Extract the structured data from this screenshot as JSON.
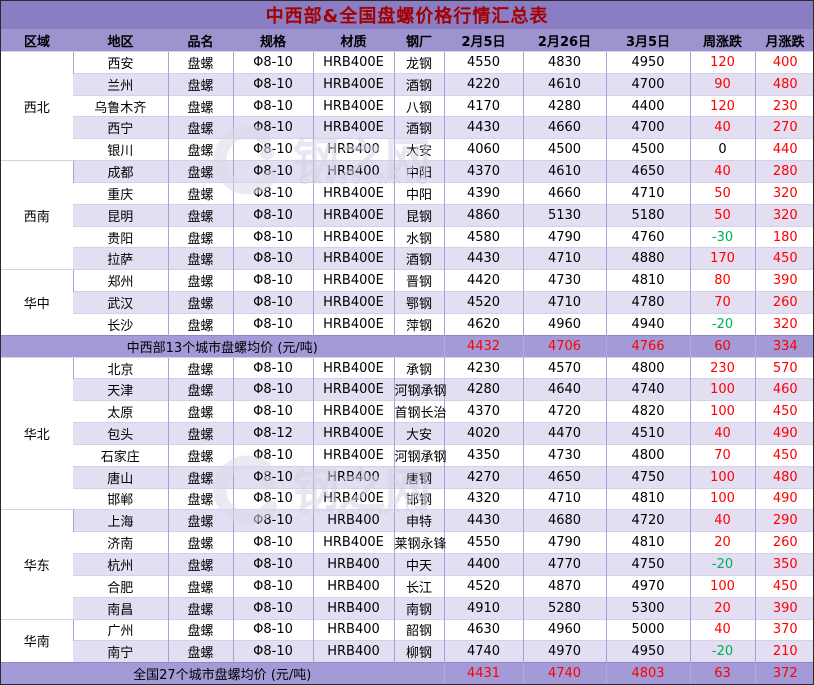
{
  "title": "中西部&全国盘螺价格行情汇总表",
  "watermark": {
    "text": "钢之网",
    "subtext": "GANGGUWANG"
  },
  "colors": {
    "title_bg": "#8a7dc4",
    "title_text": "#a40000",
    "header_bg": "#9c93cf",
    "summary_bg": "#a39bd7",
    "stripe_lavender": "#e3def2",
    "stripe_white": "#ffffff",
    "rise_red": "#fe0000",
    "fall_green": "#00b050"
  },
  "chart_data": {
    "type": "table",
    "title": "中西部&全国盘螺价格行情汇总表",
    "columns": [
      "区域",
      "地区",
      "品名",
      "规格",
      "材质",
      "钢厂",
      "2月5日",
      "2月26日",
      "3月5日",
      "周涨跌",
      "月涨跌"
    ],
    "sections": [
      {
        "regions": [
          {
            "name": "西北",
            "rows": [
              [
                "西安",
                "盘螺",
                "Φ8-10",
                "HRB400E",
                "龙钢",
                4550,
                4830,
                4950,
                120,
                400
              ],
              [
                "兰州",
                "盘螺",
                "Φ8-10",
                "HRB400E",
                "酒钢",
                4220,
                4610,
                4700,
                90,
                480
              ],
              [
                "乌鲁木齐",
                "盘螺",
                "Φ8-10",
                "HRB400E",
                "八钢",
                4170,
                4280,
                4400,
                120,
                230
              ],
              [
                "西宁",
                "盘螺",
                "Φ8-10",
                "HRB400E",
                "酒钢",
                4430,
                4660,
                4700,
                40,
                270
              ],
              [
                "银川",
                "盘螺",
                "Φ8-10",
                "HRB400",
                "大安",
                4060,
                4500,
                4500,
                0,
                440
              ]
            ]
          },
          {
            "name": "西南",
            "rows": [
              [
                "成都",
                "盘螺",
                "Φ8-10",
                "HRB400",
                "中阳",
                4370,
                4610,
                4650,
                40,
                280
              ],
              [
                "重庆",
                "盘螺",
                "Φ8-10",
                "HRB400E",
                "中阳",
                4390,
                4660,
                4710,
                50,
                320
              ],
              [
                "昆明",
                "盘螺",
                "Φ8-10",
                "HRB400E",
                "昆钢",
                4860,
                5130,
                5180,
                50,
                320
              ],
              [
                "贵阳",
                "盘螺",
                "Φ8-10",
                "HRB400E",
                "水钢",
                4580,
                4790,
                4760,
                -30,
                180
              ],
              [
                "拉萨",
                "盘螺",
                "Φ8-10",
                "HRB400E",
                "酒钢",
                4430,
                4710,
                4880,
                170,
                450
              ]
            ]
          },
          {
            "name": "华中",
            "rows": [
              [
                "郑州",
                "盘螺",
                "Φ8-10",
                "HRB400E",
                "晋钢",
                4420,
                4730,
                4810,
                80,
                390
              ],
              [
                "武汉",
                "盘螺",
                "Φ8-10",
                "HRB400E",
                "鄂钢",
                4520,
                4710,
                4780,
                70,
                260
              ],
              [
                "长沙",
                "盘螺",
                "Φ8-10",
                "HRB400E",
                "萍钢",
                4620,
                4960,
                4940,
                -20,
                320
              ]
            ]
          }
        ],
        "summary": {
          "label": "中西部13个城市盘螺均价 (元/吨)",
          "values": [
            4432,
            4706,
            4766,
            60,
            334
          ]
        }
      },
      {
        "regions": [
          {
            "name": "华北",
            "rows": [
              [
                "北京",
                "盘螺",
                "Φ8-10",
                "HRB400E",
                "承钢",
                4230,
                4570,
                4800,
                230,
                570
              ],
              [
                "天津",
                "盘螺",
                "Φ8-10",
                "HRB400E",
                "河钢承钢",
                4280,
                4640,
                4740,
                100,
                460
              ],
              [
                "太原",
                "盘螺",
                "Φ8-10",
                "HRB400E",
                "首钢长治",
                4370,
                4720,
                4820,
                100,
                450
              ],
              [
                "包头",
                "盘螺",
                "Φ8-12",
                "HRB400E",
                "大安",
                4020,
                4470,
                4510,
                40,
                490
              ],
              [
                "石家庄",
                "盘螺",
                "Φ8-10",
                "HRB400E",
                "河钢承钢",
                4350,
                4730,
                4800,
                70,
                450
              ],
              [
                "唐山",
                "盘螺",
                "Φ8-10",
                "HRB400",
                "唐钢",
                4270,
                4650,
                4750,
                100,
                480
              ],
              [
                "邯郸",
                "盘螺",
                "Φ8-10",
                "HRB400E",
                "邯钢",
                4320,
                4710,
                4810,
                100,
                490
              ]
            ]
          },
          {
            "name": "华东",
            "rows": [
              [
                "上海",
                "盘螺",
                "Φ8-10",
                "HRB400",
                "申特",
                4430,
                4680,
                4720,
                40,
                290
              ],
              [
                "济南",
                "盘螺",
                "Φ8-10",
                "HRB400E",
                "莱钢永锋",
                4550,
                4790,
                4810,
                20,
                260
              ],
              [
                "杭州",
                "盘螺",
                "Φ8-10",
                "HRB400",
                "中天",
                4400,
                4770,
                4750,
                -20,
                350
              ],
              [
                "合肥",
                "盘螺",
                "Φ8-10",
                "HRB400",
                "长江",
                4520,
                4870,
                4970,
                100,
                450
              ],
              [
                "南昌",
                "盘螺",
                "Φ8-10",
                "HRB400",
                "南钢",
                4910,
                5280,
                5300,
                20,
                390
              ]
            ]
          },
          {
            "name": "华南",
            "rows": [
              [
                "广州",
                "盘螺",
                "Φ8-10",
                "HRB400",
                "韶钢",
                4630,
                4960,
                5000,
                40,
                370
              ],
              [
                "南宁",
                "盘螺",
                "Φ8-10",
                "HRB400",
                "柳钢",
                4740,
                4970,
                4950,
                -20,
                210
              ]
            ]
          }
        ],
        "summary": {
          "label": "全国27个城市盘螺均价 (元/吨)",
          "values": [
            4431,
            4740,
            4803,
            63,
            372
          ]
        }
      }
    ]
  }
}
